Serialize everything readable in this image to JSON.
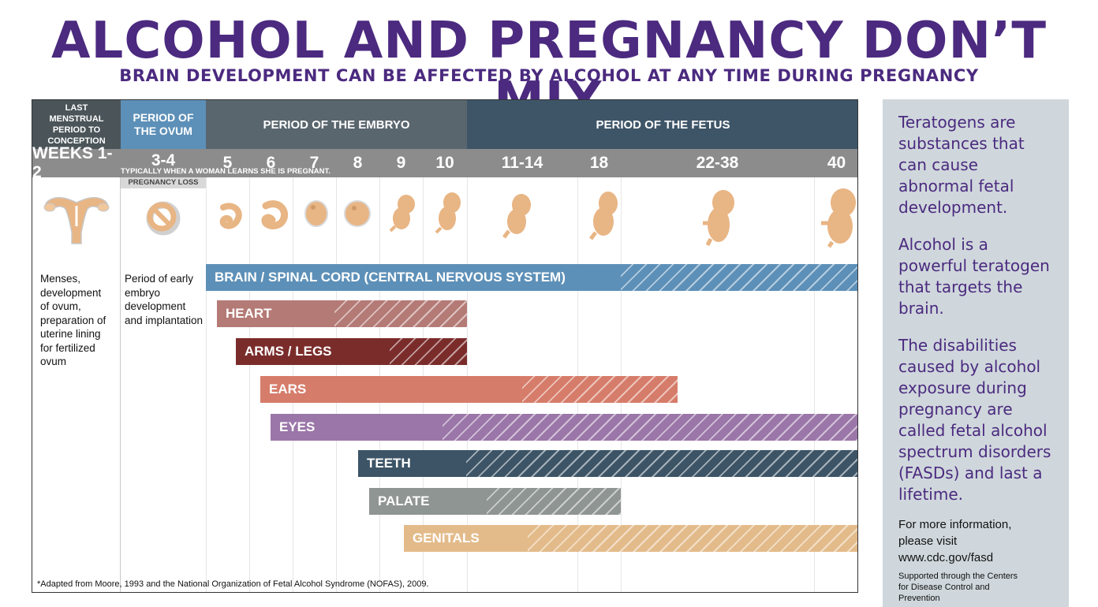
{
  "title": "ALCOHOL AND PREGNANCY DON’T MIX",
  "subtitle": "BRAIN DEVELOPMENT CAN BE AFFECTED BY ALCOHOL AT ANY TIME DURING PREGNANCY",
  "periods": {
    "lmp": "LAST MENSTRUAL PERIOD TO CONCEPTION",
    "ovum": "PERIOD OF THE OVUM",
    "embryo": "PERIOD OF THE EMBRYO",
    "fetus": "PERIOD OF THE FETUS"
  },
  "weeks": [
    "WEEKS 1-2",
    "3-4",
    "5",
    "6",
    "7",
    "8",
    "9",
    "10",
    "11-14",
    "18",
    "22-38",
    "40"
  ],
  "learn_note": "TYPICALLY WHEN A WOMAN LEARNS SHE IS PREGNANT.",
  "pregnancy_loss": "PREGNANCY LOSS",
  "descriptions": {
    "lmp": "Menses, development of ovum, preparation of uterine lining for fertilized ovum",
    "ovum": "Period of early embryo development and implantation"
  },
  "bars": [
    {
      "label": "BRAIN / SPINAL CORD (CENTRAL NERVOUS SYSTEM)",
      "color": "#5d90b8",
      "start_week": "5",
      "solid_until_week": "22-38",
      "end_week": "40"
    },
    {
      "label": "HEART",
      "color": "#b47a76",
      "start_week": "5",
      "solid_until_week": "8",
      "end_week": "10"
    },
    {
      "label": "ARMS / LEGS",
      "color": "#7a2c2b",
      "start_week": "6",
      "solid_until_week": "9",
      "end_week": "10"
    },
    {
      "label": "EARS",
      "color": "#d67c6a",
      "start_week": "6",
      "solid_until_week": "11-14",
      "end_week": "22-38"
    },
    {
      "label": "EYES",
      "color": "#9b76a8",
      "start_week": "6",
      "solid_until_week": "10",
      "end_week": "40"
    },
    {
      "label": "TEETH",
      "color": "#3c5466",
      "start_week": "8",
      "solid_until_week": "10",
      "end_week": "40"
    },
    {
      "label": "PALATE",
      "color": "#8f9593",
      "start_week": "9",
      "solid_until_week": "11-14",
      "end_week": "18"
    },
    {
      "label": "GENITALS",
      "color": "#e3bb8a",
      "start_week": "9",
      "solid_until_week": "11-14",
      "end_week": "40"
    }
  ],
  "footnote": "*Adapted from Moore, 1993 and the National Organization of Fetal Alcohol Syndrome (NOFAS), 2009.",
  "sidebar": {
    "p1": "Teratogens are substances that can cause abnormal fetal development.",
    "p2": "Alcohol is a powerful teratogen that targets the brain.",
    "p3": "The disabilities caused by alcohol exposure during pregnancy are called fetal alcohol spectrum disorders (FASDs) and last a lifetime.",
    "info": "For more information, please visit www.cdc.gov/fasd",
    "support": "Supported through the Centers for Disease Control and Prevention"
  },
  "colors": {
    "title": "#4b2a7f",
    "lmp_header": "#4a5459",
    "ovum_header": "#5d90b8",
    "embryo_header": "#5a666e",
    "fetus_header": "#3e5568",
    "weeks_row": "#8c8c8c",
    "icon": "#e8b584"
  },
  "icons": [
    "uterus-icon",
    "ovum-icon",
    "embryo-icon",
    "fetus-icon"
  ]
}
